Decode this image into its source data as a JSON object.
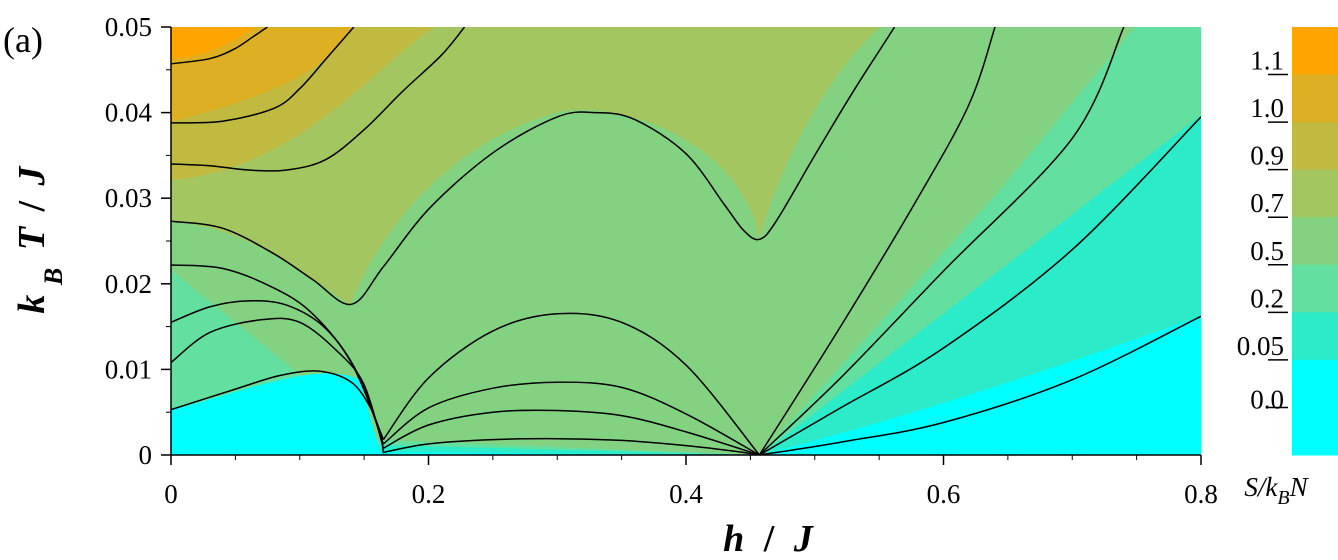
{
  "panel_label": "(a)",
  "colors": {
    "level_0": "#00FFFF",
    "level_1": "#2BEBC8",
    "level_2": "#63DFA0",
    "level_3": "#82D281",
    "level_4": "#A3C660",
    "level_5": "#C0BA40",
    "level_6": "#DDB023",
    "level_7": "#FFA500"
  },
  "chart_data": {
    "type": "heatmap",
    "subtype": "filled contour",
    "xlabel_parts": [
      "h",
      "/",
      "J"
    ],
    "ylabel_parts": [
      "k",
      "B",
      "T",
      "/",
      "J"
    ],
    "colorbar_title_parts": [
      "S/k",
      "B",
      "N"
    ],
    "xlim": [
      0,
      0.8
    ],
    "ylim": [
      0,
      0.05
    ],
    "x_ticks": [
      {
        "value": 0,
        "label": "0"
      },
      {
        "value": 0.2,
        "label": "0.2"
      },
      {
        "value": 0.4,
        "label": "0.4"
      },
      {
        "value": 0.6,
        "label": "0.6"
      },
      {
        "value": 0.8,
        "label": "0.8"
      }
    ],
    "y_ticks": [
      {
        "value": 0,
        "label": "0"
      },
      {
        "value": 0.01,
        "label": "0.01"
      },
      {
        "value": 0.02,
        "label": "0.02"
      },
      {
        "value": 0.03,
        "label": "0.03"
      },
      {
        "value": 0.04,
        "label": "0.04"
      },
      {
        "value": 0.05,
        "label": "0.05"
      }
    ],
    "colorbar_labels": [
      "1.1",
      "1.0",
      "0.9",
      "0.7",
      "0.5",
      "0.2",
      "0.05",
      "0.0"
    ],
    "critical_fields": [
      0.165,
      0.457
    ],
    "contours": [
      [
        [
          0.0,
          0.0053
        ],
        [
          0.05,
          0.0077
        ],
        [
          0.085,
          0.0093
        ],
        [
          0.115,
          0.0098
        ],
        [
          0.14,
          0.0085
        ],
        [
          0.155,
          0.0055
        ],
        [
          0.163,
          0.0022
        ],
        [
          0.165,
          0.0002
        ]
      ],
      [
        [
          0.165,
          0.0003
        ],
        [
          0.2,
          0.0013
        ],
        [
          0.25,
          0.0018
        ],
        [
          0.3,
          0.0019
        ],
        [
          0.35,
          0.0017
        ],
        [
          0.4,
          0.0011
        ],
        [
          0.44,
          0.0004
        ],
        [
          0.457,
          0.0
        ]
      ],
      [
        [
          0.457,
          0.0
        ],
        [
          0.52,
          0.0015
        ],
        [
          0.6,
          0.0038
        ],
        [
          0.7,
          0.0088
        ],
        [
          0.8,
          0.0162
        ]
      ],
      [
        [
          0.0,
          0.0108
        ],
        [
          0.03,
          0.0143
        ],
        [
          0.07,
          0.0158
        ],
        [
          0.1,
          0.0155
        ],
        [
          0.13,
          0.012
        ],
        [
          0.15,
          0.0082
        ],
        [
          0.165,
          0.0008
        ]
      ],
      [
        [
          0.165,
          0.0008
        ],
        [
          0.2,
          0.0035
        ],
        [
          0.25,
          0.005
        ],
        [
          0.3,
          0.0052
        ],
        [
          0.35,
          0.0046
        ],
        [
          0.4,
          0.0027
        ],
        [
          0.457,
          0.0
        ]
      ],
      [
        [
          0.457,
          0.0
        ],
        [
          0.52,
          0.0055
        ],
        [
          0.6,
          0.0125
        ],
        [
          0.7,
          0.024
        ],
        [
          0.8,
          0.0395
        ]
      ],
      [
        [
          0.0,
          0.0155
        ],
        [
          0.03,
          0.0173
        ],
        [
          0.06,
          0.018
        ],
        [
          0.09,
          0.0175
        ],
        [
          0.12,
          0.0148
        ],
        [
          0.145,
          0.0095
        ],
        [
          0.165,
          0.0013
        ]
      ],
      [
        [
          0.165,
          0.0013
        ],
        [
          0.2,
          0.0055
        ],
        [
          0.25,
          0.0078
        ],
        [
          0.3,
          0.0085
        ],
        [
          0.35,
          0.0079
        ],
        [
          0.4,
          0.0048
        ],
        [
          0.457,
          0.0
        ]
      ],
      [
        [
          0.457,
          0.0
        ],
        [
          0.52,
          0.009
        ],
        [
          0.6,
          0.0215
        ],
        [
          0.7,
          0.037
        ],
        [
          0.74,
          0.05
        ]
      ],
      [
        [
          0.0,
          0.0222
        ],
        [
          0.04,
          0.0218
        ],
        [
          0.08,
          0.0195
        ],
        [
          0.11,
          0.0165
        ],
        [
          0.14,
          0.0108
        ],
        [
          0.165,
          0.0018
        ]
      ],
      [
        [
          0.165,
          0.0018
        ],
        [
          0.2,
          0.009
        ],
        [
          0.25,
          0.0145
        ],
        [
          0.3,
          0.0165
        ],
        [
          0.35,
          0.0155
        ],
        [
          0.4,
          0.0105
        ],
        [
          0.457,
          0.0
        ]
      ],
      [
        [
          0.457,
          0.0
        ],
        [
          0.52,
          0.015
        ],
        [
          0.58,
          0.03
        ],
        [
          0.62,
          0.041
        ],
        [
          0.64,
          0.05
        ]
      ],
      [
        [
          0.0,
          0.0273
        ],
        [
          0.04,
          0.0265
        ],
        [
          0.08,
          0.0235
        ],
        [
          0.11,
          0.0205
        ],
        [
          0.14,
          0.0176
        ],
        [
          0.165,
          0.022
        ],
        [
          0.2,
          0.0287
        ],
        [
          0.25,
          0.0353
        ],
        [
          0.3,
          0.0395
        ],
        [
          0.33,
          0.04
        ],
        [
          0.36,
          0.0392
        ],
        [
          0.4,
          0.0352
        ],
        [
          0.43,
          0.0292
        ],
        [
          0.445,
          0.0262
        ],
        [
          0.457,
          0.0252
        ],
        [
          0.47,
          0.0273
        ],
        [
          0.5,
          0.035
        ],
        [
          0.53,
          0.0425
        ],
        [
          0.55,
          0.0472
        ],
        [
          0.562,
          0.05
        ]
      ],
      [
        [
          0.0,
          0.034
        ],
        [
          0.03,
          0.0338
        ],
        [
          0.06,
          0.0333
        ],
        [
          0.09,
          0.0333
        ],
        [
          0.12,
          0.0345
        ],
        [
          0.15,
          0.038
        ],
        [
          0.18,
          0.0425
        ],
        [
          0.21,
          0.0467
        ],
        [
          0.228,
          0.05
        ]
      ],
      [
        [
          0.0,
          0.0388
        ],
        [
          0.04,
          0.039
        ],
        [
          0.08,
          0.0405
        ],
        [
          0.1,
          0.0428
        ],
        [
          0.12,
          0.0462
        ],
        [
          0.142,
          0.05
        ]
      ],
      [
        [
          0.0,
          0.0457
        ],
        [
          0.03,
          0.0463
        ],
        [
          0.05,
          0.0475
        ],
        [
          0.065,
          0.049
        ],
        [
          0.075,
          0.05
        ]
      ]
    ]
  }
}
